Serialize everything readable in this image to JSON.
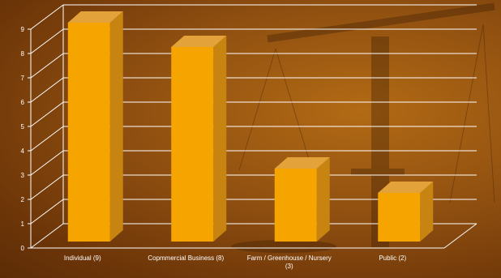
{
  "chart_data": {
    "type": "bar",
    "categories": [
      "Individual",
      "Copmmercial Business",
      "Farm / Greenhouse / Nursery",
      "Public"
    ],
    "category_labels": [
      {
        "line1": "Individual   (9)",
        "line2": ""
      },
      {
        "line1": "Copmmercial Business  (8)",
        "line2": ""
      },
      {
        "line1": "Farm / Greenhouse / Nursery",
        "line2": "(3)"
      },
      {
        "line1": "Public              (2)",
        "line2": ""
      }
    ],
    "values": [
      9,
      8,
      3,
      2
    ],
    "yticks": [
      "0",
      "1",
      "2",
      "3",
      "4",
      "5",
      "6",
      "7",
      "8",
      "9"
    ],
    "ylim": [
      0,
      9
    ],
    "grid": true,
    "three_d": true,
    "colors": {
      "bar_front": "#f6a400",
      "bar_side": "#c78410",
      "bar_top": "#e3a23a",
      "grid": "#ffffff",
      "text": "#ffffff"
    }
  }
}
